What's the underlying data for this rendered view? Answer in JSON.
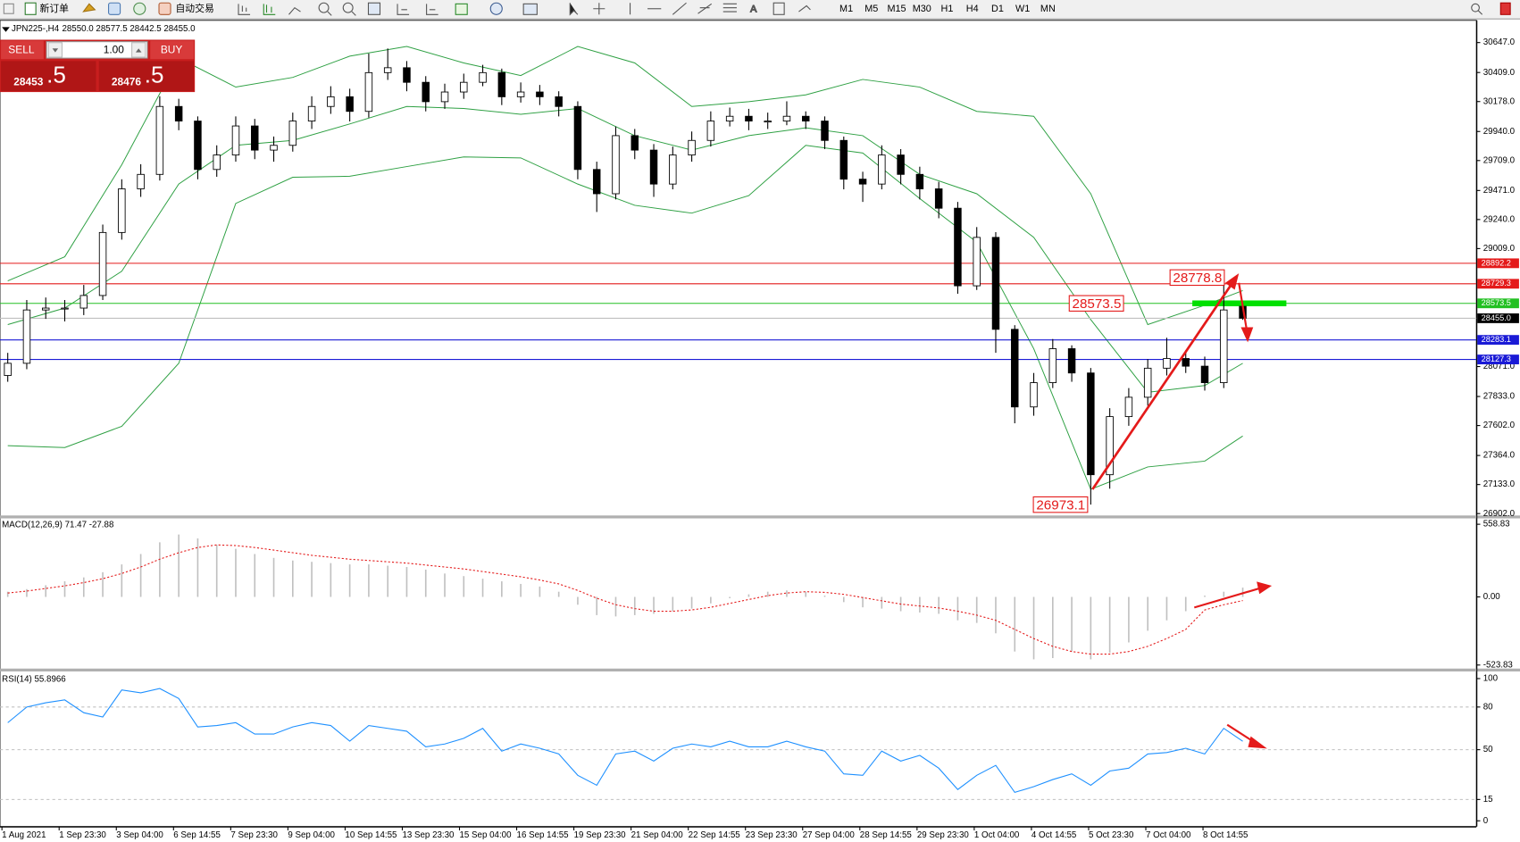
{
  "toolbar": {
    "new_order": "新订单",
    "auto_trading": "自动交易",
    "timeframes": [
      "M1",
      "M5",
      "M15",
      "M30",
      "H1",
      "H4",
      "D1",
      "W1",
      "MN"
    ]
  },
  "trade_panel": {
    "sell": "SELL",
    "buy": "BUY",
    "lot": "1.00",
    "sell_price": "28453",
    "sell_pips": ".5",
    "buy_price": "28476",
    "buy_pips": ".5"
  },
  "chart_data": [
    {
      "type": "candlestick",
      "title": "JPN225-,H4",
      "ohlc_header": "28550.0 28577.5 28442.5 28455.0",
      "open": [
        28000,
        28097,
        28521,
        28536,
        28536,
        28636,
        29137,
        29484,
        29599,
        30139,
        30023,
        29638,
        29753,
        29984,
        29792,
        29830,
        30023,
        30139,
        30216,
        30100,
        30408,
        30447,
        30331,
        30177,
        30254,
        30331,
        30408,
        30216,
        30254,
        30216,
        30139,
        29638,
        29445,
        29907,
        29792,
        29522,
        29753,
        29869,
        30023,
        30061,
        30023,
        30023,
        30061,
        30023,
        29869,
        29561,
        29522,
        29753,
        29599,
        29484,
        29330,
        28713,
        29098,
        28367,
        27750,
        27943,
        28213,
        28020,
        27211,
        27673,
        27827,
        28058,
        28135,
        28074,
        27943,
        28550
      ],
      "high": [
        28180,
        28600,
        28620,
        28600,
        28720,
        29200,
        29560,
        29680,
        30220,
        30200,
        30060,
        29830,
        30060,
        30040,
        29900,
        30090,
        30220,
        30300,
        30280,
        30560,
        30600,
        30500,
        30380,
        30320,
        30400,
        30470,
        30440,
        30330,
        30310,
        30260,
        30180,
        29700,
        29980,
        29960,
        29840,
        29820,
        29940,
        30100,
        30130,
        30120,
        30090,
        30180,
        30100,
        30060,
        29900,
        29620,
        29830,
        29800,
        29660,
        29540,
        29380,
        29180,
        29140,
        28400,
        28020,
        28290,
        28240,
        28060,
        27740,
        27900,
        28130,
        28300,
        28200,
        28150,
        28778.8,
        28577.5
      ],
      "low": [
        27950,
        28050,
        28450,
        28430,
        28480,
        28600,
        29080,
        29420,
        29550,
        29950,
        29560,
        29580,
        29700,
        29720,
        29700,
        29780,
        29960,
        30080,
        30020,
        30050,
        30350,
        30260,
        30100,
        30120,
        30200,
        30300,
        30150,
        30170,
        30150,
        30060,
        29560,
        29300,
        29400,
        29720,
        29420,
        29480,
        29700,
        29820,
        29980,
        29950,
        29960,
        29990,
        29960,
        29800,
        29480,
        29380,
        29480,
        29520,
        29400,
        29250,
        28650,
        28680,
        28180,
        27620,
        27680,
        27900,
        27950,
        26973.1,
        27100,
        27600,
        27760,
        28000,
        28020,
        27880,
        27900,
        28442.5
      ],
      "close": [
        28097,
        28521,
        28536,
        28536,
        28636,
        29137,
        29484,
        29599,
        30139,
        30023,
        29638,
        29753,
        29984,
        29792,
        29830,
        30023,
        30139,
        30216,
        30100,
        30408,
        30447,
        30331,
        30177,
        30254,
        30331,
        30408,
        30216,
        30254,
        30216,
        30139,
        29638,
        29445,
        29907,
        29792,
        29522,
        29753,
        29869,
        30023,
        30061,
        30023,
        30023,
        30061,
        30023,
        29869,
        29561,
        29522,
        29753,
        29599,
        29484,
        29330,
        28713,
        29098,
        28367,
        27750,
        27943,
        28213,
        28020,
        27211,
        27673,
        27827,
        28058,
        28135,
        28074,
        27943,
        28521,
        28455
      ],
      "bands": {
        "color": "#2ea043",
        "index": [
          0,
          3,
          6,
          9,
          12,
          15,
          18,
          21,
          24,
          27,
          30,
          33,
          36,
          39,
          42,
          45,
          48,
          51,
          54,
          57,
          60,
          63,
          65
        ],
        "upper": [
          28752,
          28944,
          29676,
          30524,
          30293,
          30370,
          30539,
          30616,
          30485,
          30385,
          30616,
          30485,
          30139,
          30177,
          30231,
          30354,
          30293,
          30100,
          30061,
          29445,
          28405,
          28559,
          28675
        ],
        "middle": [
          28405,
          28536,
          28829,
          29522,
          29830,
          29869,
          30000,
          30139,
          30123,
          30077,
          30123,
          29907,
          29792,
          29907,
          29969,
          29907,
          29599,
          29445,
          29098,
          28444,
          27866,
          27920,
          28097
        ],
        "lower": [
          27442,
          27427,
          27596,
          28097,
          29368,
          29576,
          29584,
          29661,
          29738,
          29730,
          29522,
          29353,
          29291,
          29430,
          29830,
          29769,
          29407,
          29060,
          28213,
          27095,
          27273,
          27319,
          27519
        ]
      },
      "ylim": [
        26887,
        30816
      ],
      "yticks": [
        {
          "value": 30647,
          "label": "30647.0"
        },
        {
          "value": 30409,
          "label": "30409.0"
        },
        {
          "value": 30178,
          "label": "30178.0"
        },
        {
          "value": 29940,
          "label": "29940.0"
        },
        {
          "value": 29709,
          "label": "29709.0"
        },
        {
          "value": 29471,
          "label": "29471.0"
        },
        {
          "value": 29240,
          "label": "29240.0"
        },
        {
          "value": 29009,
          "label": "29009.0"
        },
        {
          "value": 28071,
          "label": "28071.0"
        },
        {
          "value": 27833,
          "label": "27833.0"
        },
        {
          "value": 27602,
          "label": "27602.0"
        },
        {
          "value": 27364,
          "label": "27364.0"
        },
        {
          "value": 27133,
          "label": "27133.0"
        },
        {
          "value": 26902,
          "label": "26902.0"
        }
      ],
      "levels": [
        {
          "value": 28892.2,
          "label": "28892.2",
          "color": "#e41a1a"
        },
        {
          "value": 28729.3,
          "label": "28729.3",
          "color": "#e41a1a"
        },
        {
          "value": 28573.5,
          "label": "28573.5",
          "color": "#22c022"
        },
        {
          "value": 28455,
          "label": "28455.0",
          "color": "#000000"
        },
        {
          "value": 28283.1,
          "label": "28283.1",
          "color": "#1a1ad6"
        },
        {
          "value": 28127.3,
          "label": "28127.3",
          "color": "#1a1ad6"
        }
      ],
      "annotations": [
        {
          "value": 28778.8,
          "label": "28778.8"
        },
        {
          "value": 28573.5,
          "label": "28573.5"
        },
        {
          "value": 26973.1,
          "label": "26973.1"
        }
      ],
      "x_labels": [
        "1 Aug 2021",
        "1 Sep 23:30",
        "3 Sep 04:00",
        "6 Sep 14:55",
        "7 Sep 23:30",
        "9 Sep 04:00",
        "10 Sep 14:55",
        "13 Sep 23:30",
        "15 Sep 04:00",
        "16 Sep 14:55",
        "19 Sep 23:30",
        "21 Sep 04:00",
        "22 Sep 14:55",
        "23 Sep 23:30",
        "27 Sep 04:00",
        "28 Sep 14:55",
        "29 Sep 23:30",
        "1 Oct 04:00",
        "4 Oct 14:55",
        "5 Oct 23:30",
        "7 Oct 04:00",
        "8 Oct 14:55"
      ]
    },
    {
      "type": "macd",
      "title": "MACD(12,26,9) 71.47 -27.88",
      "color": "#c0c0c0",
      "signal_color": "#e41a1a",
      "values": [
        40,
        60,
        90,
        120,
        150,
        190,
        250,
        330,
        420,
        480,
        450,
        400,
        370,
        330,
        300,
        280,
        270,
        260,
        250,
        250,
        240,
        230,
        210,
        180,
        160,
        140,
        120,
        100,
        80,
        40,
        -60,
        -140,
        -150,
        -140,
        -130,
        -110,
        -90,
        -50,
        -10,
        20,
        40,
        50,
        40,
        10,
        -40,
        -80,
        -90,
        -110,
        -120,
        -130,
        -180,
        -200,
        -280,
        -420,
        -480,
        -470,
        -420,
        -480,
        -430,
        -350,
        -260,
        -180,
        -110,
        10,
        40,
        71.47
      ],
      "signal": [
        30,
        45,
        65,
        85,
        110,
        140,
        180,
        230,
        290,
        340,
        380,
        400,
        395,
        380,
        360,
        340,
        320,
        305,
        290,
        280,
        270,
        260,
        245,
        230,
        215,
        195,
        175,
        155,
        130,
        100,
        50,
        -10,
        -60,
        -90,
        -110,
        -110,
        -100,
        -80,
        -50,
        -20,
        10,
        30,
        40,
        35,
        20,
        -5,
        -30,
        -55,
        -70,
        -85,
        -110,
        -140,
        -180,
        -250,
        -320,
        -380,
        -420,
        -440,
        -440,
        -420,
        -380,
        -320,
        -250,
        -100,
        -60,
        -27.88
      ],
      "ylim": [
        -551,
        604
      ],
      "yticks": [
        {
          "value": 558.83,
          "label": "558.83"
        },
        {
          "value": 0,
          "label": "0.00"
        },
        {
          "value": -523.83,
          "label": "-523.83"
        }
      ]
    },
    {
      "type": "rsi",
      "title": "RSI(14) 55.8966",
      "color": "#1e90ff",
      "values": [
        69,
        80,
        83,
        85,
        76,
        73,
        92,
        90,
        93,
        86,
        66,
        67,
        69,
        61,
        61,
        66,
        69,
        67,
        56,
        67,
        65,
        63,
        52,
        54,
        58,
        65,
        49,
        54,
        51,
        47,
        32,
        25,
        47,
        49,
        42,
        51,
        54,
        52,
        56,
        52,
        52,
        56,
        52,
        49,
        33,
        32,
        49,
        42,
        46,
        37,
        22,
        32,
        39,
        20,
        24,
        29,
        33,
        25,
        35,
        37,
        47,
        48,
        51,
        47,
        65,
        55.8966
      ],
      "ylim": [
        -4,
        105
      ],
      "yticks": [
        100,
        80,
        50,
        15,
        0
      ],
      "grid_levels": [
        80,
        50,
        15
      ]
    }
  ]
}
